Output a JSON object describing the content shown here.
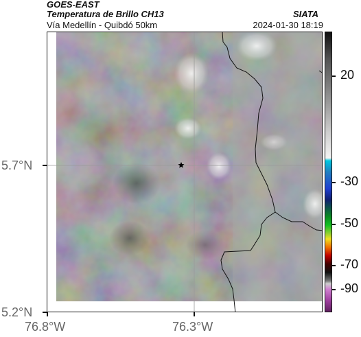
{
  "header": {
    "satellite": "GOES-EAST",
    "product": "Temperatura de Brillo CH13",
    "region": "Vía Medellín - Quibdó 50km",
    "org": "SIATA",
    "datetime": "2024-01-30 18:19"
  },
  "map": {
    "lat_labels": [
      "5.7°N",
      "5.2°N"
    ],
    "lon_labels": [
      "76.8°W",
      "76.3°W"
    ],
    "marker": "star",
    "gridlines": true
  },
  "colorbar": {
    "tick_labels": [
      "20",
      "-30",
      "-50",
      "-70",
      "-90"
    ],
    "range": [
      -95,
      45
    ],
    "colors": {
      "warm": "#111111",
      "mid": "#cfcfcf",
      "cyan": "#00c8e0",
      "blue": "#1f3fd0",
      "green": "#10c020",
      "yellow": "#f0e020",
      "orange": "#f07000",
      "red": "#c00000",
      "purple": "#a040a0"
    }
  }
}
